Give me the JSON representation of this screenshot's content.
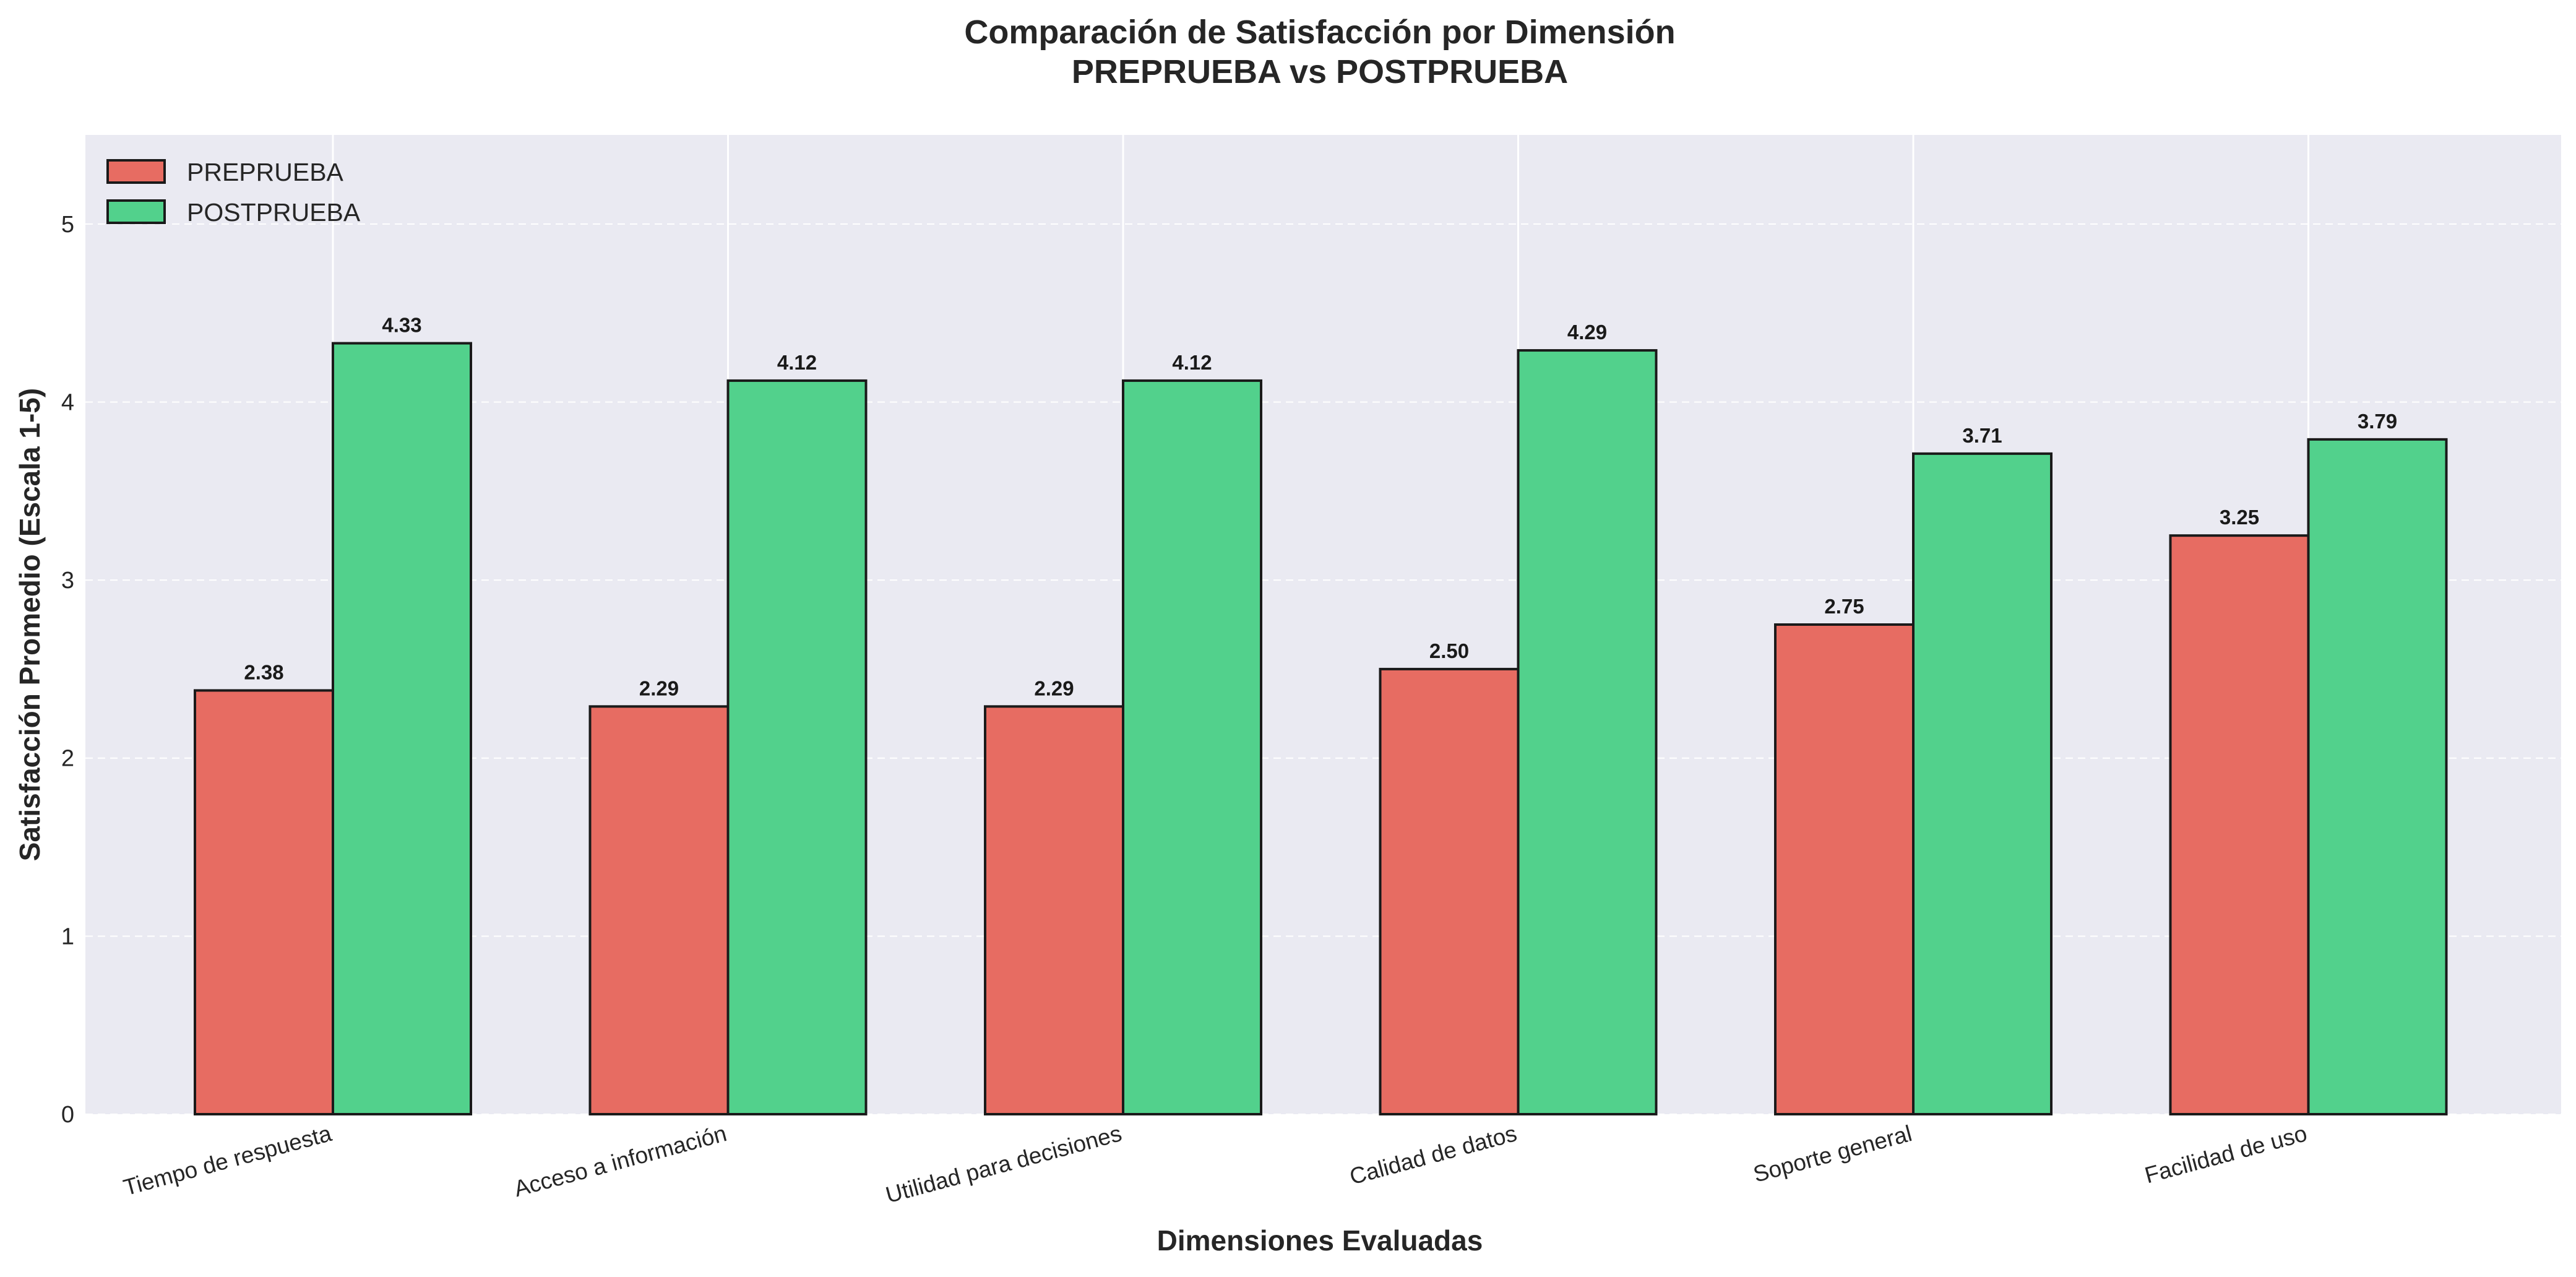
{
  "chart_data": {
    "type": "bar",
    "title": "Comparación de Satisfacción por Dimensión",
    "subtitle": "PREPRUEBA vs POSTPRUEBA",
    "xlabel": "Dimensiones Evaluadas",
    "ylabel": "Satisfacción Promedio (Escala 1-5)",
    "ylim": [
      0,
      5.5
    ],
    "yticks": [
      0,
      1,
      2,
      3,
      4,
      5
    ],
    "grid": true,
    "legend_position": "top-left",
    "categories": [
      "Tiempo de respuesta",
      "Acceso a información",
      "Utilidad para decisiones",
      "Calidad de datos",
      "Soporte general",
      "Facilidad de uso"
    ],
    "series": [
      {
        "name": "PREPRUEBA",
        "color": "#e76c62",
        "values": [
          2.38,
          2.29,
          2.29,
          2.5,
          2.75,
          3.25
        ],
        "labels": [
          "2.38",
          "2.29",
          "2.29",
          "2.50",
          "2.75",
          "3.25"
        ]
      },
      {
        "name": "POSTPRUEBA",
        "color": "#52d18c",
        "values": [
          4.33,
          4.12,
          4.12,
          4.29,
          3.71,
          3.79
        ],
        "labels": [
          "4.33",
          "4.12",
          "4.12",
          "4.29",
          "3.71",
          "3.79"
        ]
      }
    ],
    "colors": {
      "plot_background": "#eaeaf2",
      "gridline": "#ffffff",
      "bar_edge": "#1a1a1a"
    }
  }
}
